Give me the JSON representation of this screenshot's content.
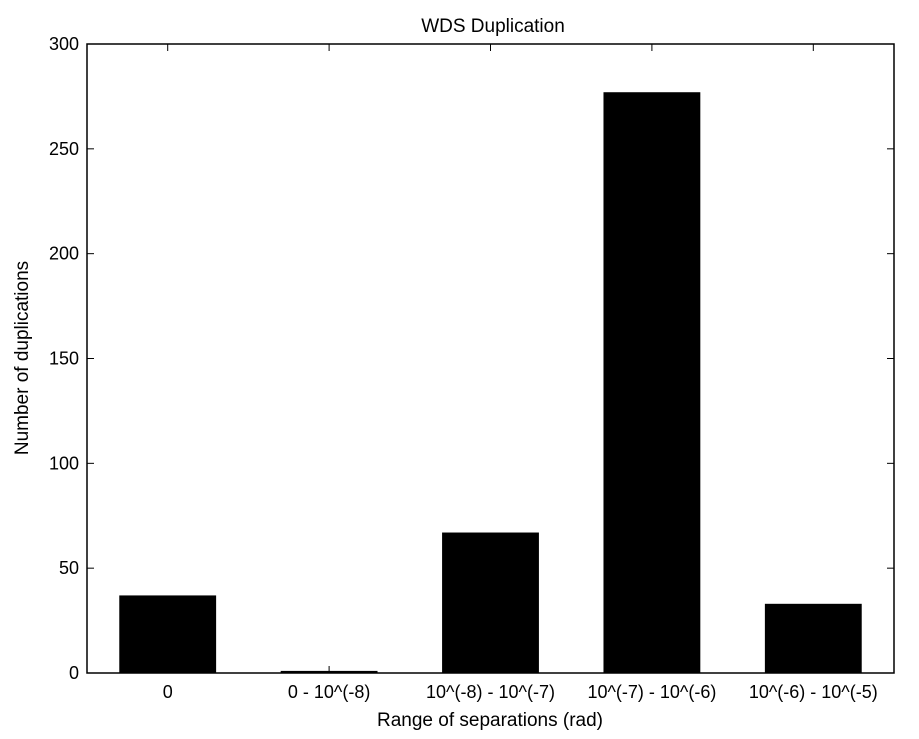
{
  "chart_data": {
    "type": "bar",
    "title": "WDS Duplication",
    "xlabel": "Range of separations (rad)",
    "ylabel": "Number of duplications",
    "categories": [
      "0",
      "0 - 10^(-8)",
      "10^(-8) - 10^(-7)",
      "10^(-7) - 10^(-6)",
      "10^(-6) - 10^(-5)"
    ],
    "values": [
      37,
      1,
      67,
      277,
      33
    ],
    "ylim": [
      0,
      300
    ],
    "yticks": [
      0,
      50,
      100,
      150,
      200,
      250,
      300
    ],
    "grid": false,
    "legend": "none",
    "bar_color": "#000000"
  }
}
